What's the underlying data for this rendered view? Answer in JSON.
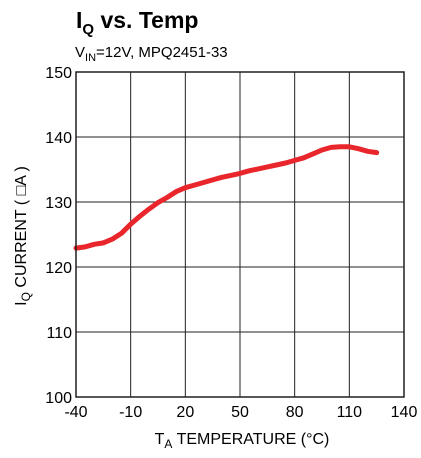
{
  "chart_data": {
    "type": "line",
    "title": {
      "main": "I",
      "sub": "Q",
      "rest": " vs. Temp"
    },
    "subtitle": {
      "main": "V",
      "sub": "IN",
      "rest": "=12V, MPQ2451-33"
    },
    "xlabel": {
      "main": "T",
      "sub": "A",
      "rest": " TEMPERATURE (°C)"
    },
    "ylabel": {
      "main": "I",
      "sub": "Q",
      "rest": " CURRENT ( □A )"
    },
    "x_ticks": [
      -40,
      -10,
      20,
      50,
      80,
      110,
      140
    ],
    "y_ticks": [
      100,
      110,
      120,
      130,
      140,
      150
    ],
    "xlim": [
      -40,
      140
    ],
    "ylim": [
      100,
      150
    ],
    "grid": true,
    "line_color": "#e8262b",
    "series": [
      {
        "x": [
          -40,
          -35,
          -30,
          -25,
          -20,
          -15,
          -10,
          -5,
          0,
          5,
          10,
          15,
          20,
          25,
          30,
          35,
          40,
          45,
          50,
          55,
          60,
          65,
          70,
          75,
          80,
          85,
          90,
          95,
          100,
          105,
          110,
          115,
          120,
          125
        ],
        "values": [
          122.9,
          123.1,
          123.5,
          123.7,
          124.3,
          125.2,
          126.6,
          127.8,
          128.9,
          129.9,
          130.7,
          131.6,
          132.2,
          132.6,
          133.0,
          133.4,
          133.8,
          134.1,
          134.4,
          134.8,
          135.1,
          135.4,
          135.7,
          136.0,
          136.4,
          136.8,
          137.4,
          138.0,
          138.4,
          138.5,
          138.5,
          138.2,
          137.8,
          137.6
        ]
      }
    ]
  }
}
